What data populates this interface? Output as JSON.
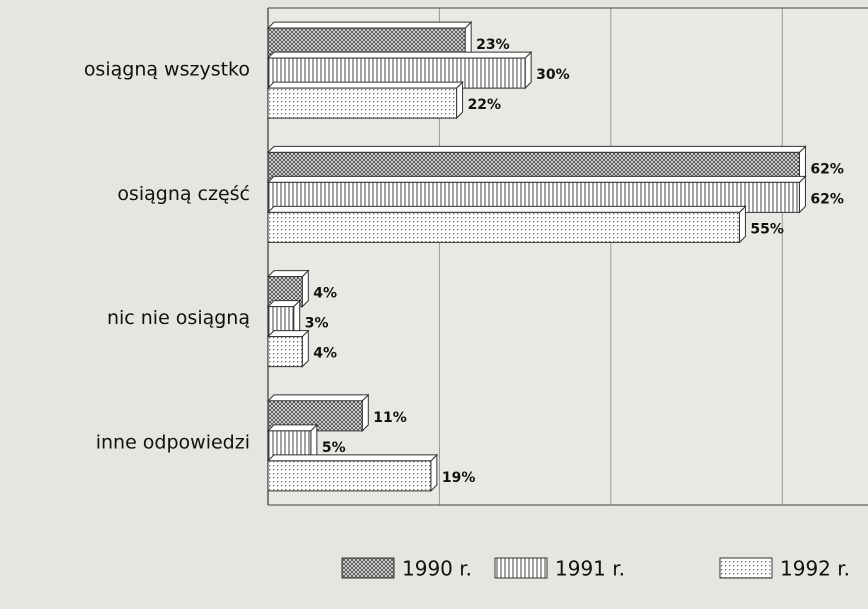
{
  "chart_data": {
    "type": "barh",
    "categories": [
      "osiągną wszystko",
      "osiągną część",
      "nic nie osiągną",
      "inne odpowiedzi"
    ],
    "series": [
      {
        "name": "1990 r.",
        "color": "#555555",
        "values": [
          23,
          62,
          4,
          11
        ],
        "value_labels": [
          "23%",
          "62%",
          "4%",
          "11%"
        ]
      },
      {
        "name": "1991 r.",
        "color": "#444444",
        "values": [
          30,
          62,
          3,
          5
        ],
        "value_labels": [
          "30%",
          "62%",
          "3%",
          "5%"
        ]
      },
      {
        "name": "1992 r.",
        "color": "#666666",
        "values": [
          22,
          55,
          4,
          19
        ],
        "value_labels": [
          "22%",
          "55%",
          "4%",
          "19%"
        ]
      }
    ],
    "xlim": [
      0,
      70
    ],
    "xticks": [
      20,
      40,
      60
    ],
    "grid": true,
    "legend": "bottom"
  }
}
